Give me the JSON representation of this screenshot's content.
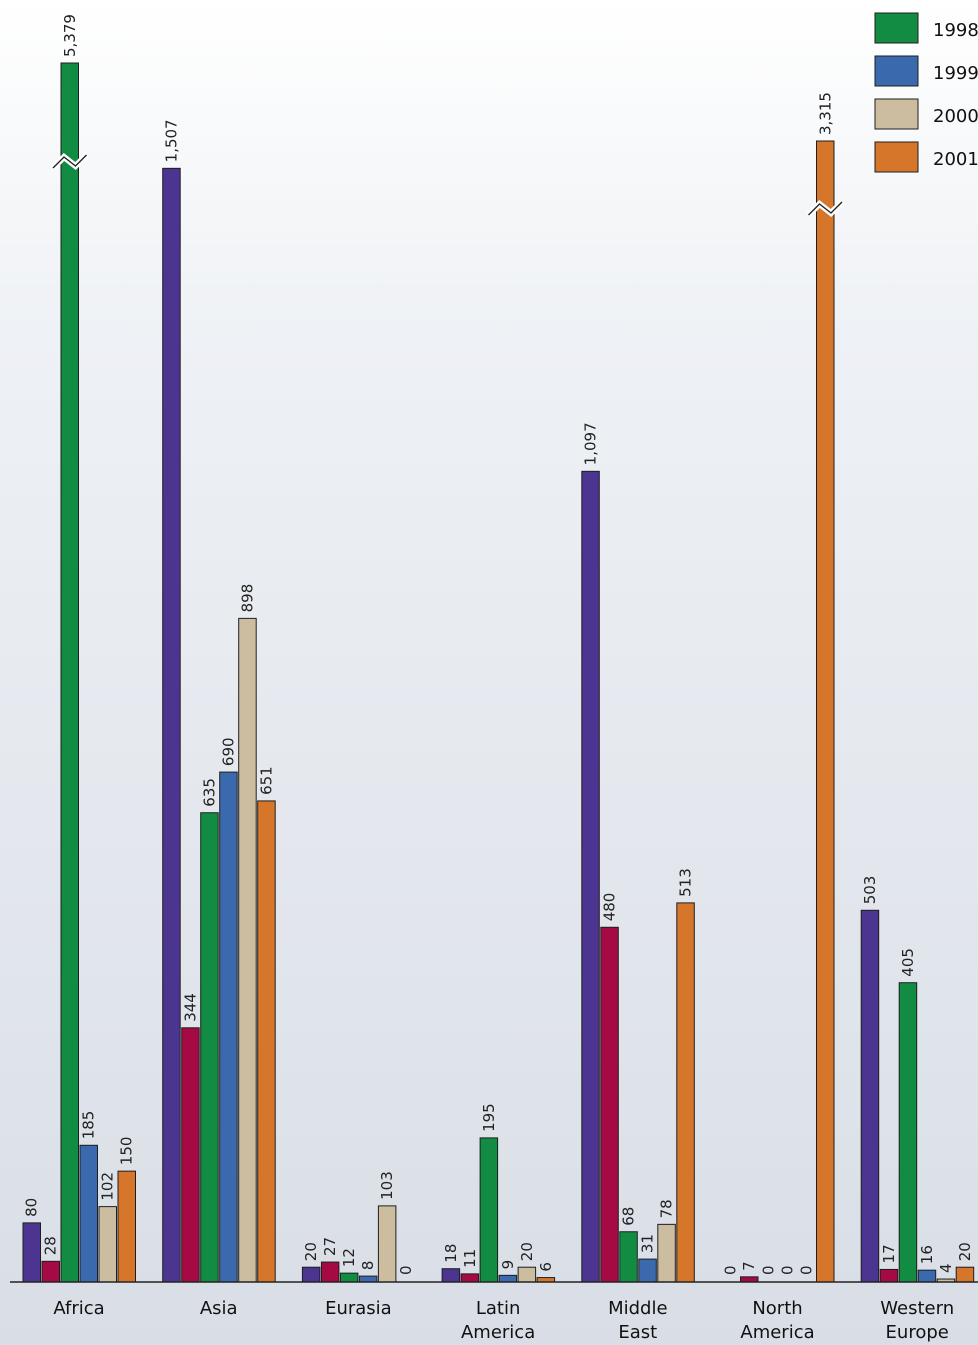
{
  "chart_data": {
    "type": "bar",
    "categories": [
      [
        "Africa"
      ],
      [
        "Asia"
      ],
      [
        "Eurasia"
      ],
      [
        "Latin",
        "America"
      ],
      [
        "Middle",
        "East"
      ],
      [
        "North",
        "America"
      ],
      [
        "Western",
        "Europe"
      ]
    ],
    "series": [
      {
        "name": "",
        "color": "#4b3590",
        "values": [
          80,
          1507,
          20,
          18,
          1097,
          0,
          503
        ],
        "labels": [
          "80",
          "1,507",
          "20",
          "18",
          "1,097",
          "0",
          "503"
        ]
      },
      {
        "name": "",
        "color": "#a50a45",
        "values": [
          28,
          344,
          27,
          11,
          480,
          7,
          17
        ],
        "labels": [
          "28",
          "344",
          "27",
          "11",
          "480",
          "7",
          "17"
        ]
      },
      {
        "name": "1998",
        "color": "#128c42",
        "values": [
          5379,
          635,
          12,
          195,
          68,
          0,
          405
        ],
        "labels": [
          "5,379",
          "635",
          "12",
          "195",
          "68",
          "0",
          "405"
        ]
      },
      {
        "name": "1999",
        "color": "#3a69ad",
        "values": [
          185,
          690,
          8,
          9,
          31,
          0,
          16
        ],
        "labels": [
          "185",
          "690",
          "8",
          "9",
          "31",
          "0",
          "16"
        ]
      },
      {
        "name": "2000",
        "color": "#cdbda0",
        "values": [
          102,
          898,
          103,
          20,
          78,
          0,
          4
        ],
        "labels": [
          "102",
          "898",
          "103",
          "20",
          "78",
          "0",
          "4"
        ]
      },
      {
        "name": "2001",
        "color": "#d6762a",
        "values": [
          150,
          651,
          0,
          6,
          513,
          3315,
          20
        ],
        "labels": [
          "150",
          "651",
          "0",
          "6",
          "513",
          "3,315",
          "20"
        ]
      }
    ],
    "axis_break": true,
    "break_values": [
      5379,
      3315
    ],
    "legend_position": "top-right",
    "grid": false
  }
}
